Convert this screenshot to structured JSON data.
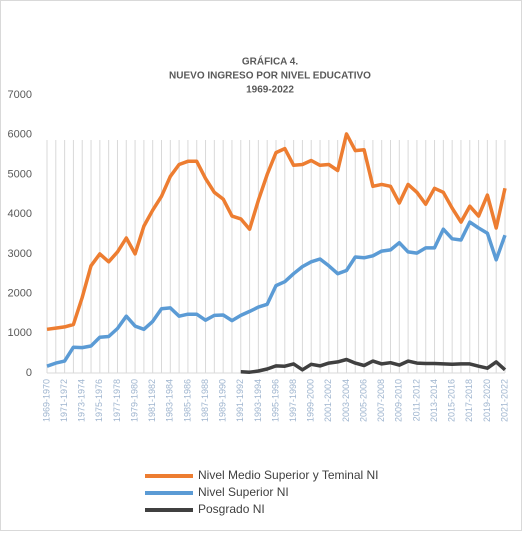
{
  "chart_data": {
    "type": "line",
    "title": [
      "GRÁFICA 4.",
      "NUEVO INGRESO POR NIVEL EDUCATIVO",
      "1969-2022"
    ],
    "categories": [
      "1969-1970",
      null,
      "1971-1972",
      null,
      "1973-1974",
      null,
      "1975-1976",
      null,
      "1977-1978",
      null,
      "1979-1980",
      null,
      "1981-1982",
      null,
      "1983-1984",
      null,
      "1985-1986",
      null,
      "1987-1988",
      null,
      "1989-1990",
      null,
      "1991-1992",
      null,
      "1993-1994",
      null,
      "1995-1996",
      null,
      "1997-1998",
      null,
      "1999-2000",
      null,
      "2001-2002",
      null,
      "2003-2004",
      null,
      "2005-2006",
      null,
      "2007-2008",
      null,
      "2009-2010",
      null,
      "2011-2012",
      null,
      "2013-2014",
      null,
      "2015-2016",
      null,
      "2017-2018",
      null,
      "2019-2020",
      null,
      "2021-2022"
    ],
    "series": [
      {
        "name": "Nivel Medio Superior y Teminal NI",
        "color": "#ED7D31",
        "values": [
          1100,
          1130,
          1160,
          1220,
          1900,
          2700,
          3000,
          2800,
          3050,
          3400,
          3000,
          3700,
          4100,
          4450,
          4950,
          5250,
          5330,
          5330,
          4900,
          4550,
          4380,
          3950,
          3880,
          3620,
          4350,
          5000,
          5550,
          5650,
          5230,
          5250,
          5350,
          5230,
          5250,
          5100,
          6020,
          5600,
          5620,
          4700,
          4750,
          4700,
          4280,
          4750,
          4550,
          4250,
          4650,
          4550,
          4150,
          3800,
          4200,
          3950,
          4480,
          3650,
          4650
        ]
      },
      {
        "name": "Nivel Superior NI",
        "color": "#5B9BD5",
        "values": [
          170,
          250,
          300,
          650,
          640,
          680,
          900,
          920,
          1120,
          1430,
          1180,
          1100,
          1300,
          1620,
          1640,
          1430,
          1480,
          1480,
          1330,
          1450,
          1460,
          1320,
          1450,
          1550,
          1660,
          1730,
          2200,
          2300,
          2500,
          2680,
          2800,
          2870,
          2700,
          2500,
          2580,
          2920,
          2900,
          2950,
          3070,
          3100,
          3280,
          3050,
          3020,
          3150,
          3150,
          3620,
          3380,
          3350,
          3800,
          3650,
          3520,
          2850,
          3470
        ]
      },
      {
        "name": "Posgrado NI",
        "color": "#404040",
        "values": [
          null,
          null,
          null,
          null,
          null,
          null,
          null,
          null,
          null,
          null,
          null,
          null,
          null,
          null,
          null,
          null,
          null,
          null,
          null,
          null,
          null,
          null,
          30,
          20,
          50,
          100,
          180,
          170,
          230,
          80,
          220,
          180,
          250,
          280,
          340,
          250,
          190,
          300,
          230,
          260,
          200,
          300,
          250,
          240,
          240,
          230,
          220,
          230,
          230,
          170,
          120,
          280,
          80
        ]
      }
    ],
    "ylim": [
      0,
      7000
    ],
    "yticks": [
      0,
      1000,
      2000,
      3000,
      4000,
      5000,
      6000,
      7000
    ],
    "xgrid": true
  }
}
